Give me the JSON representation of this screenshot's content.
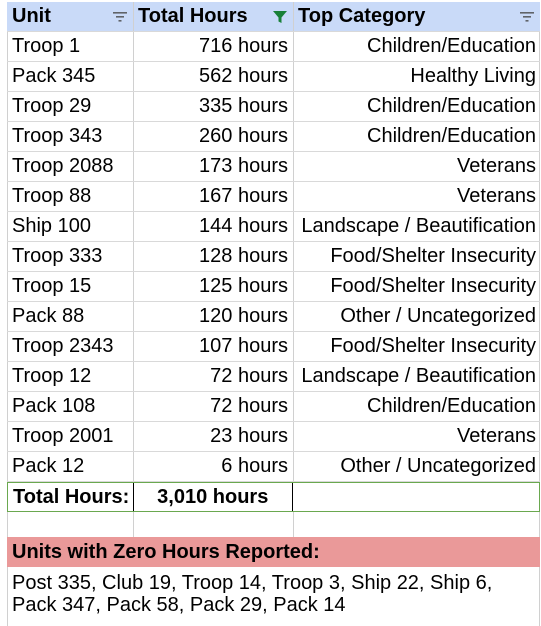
{
  "table": {
    "headers": {
      "unit": "Unit",
      "total_hours": "Total Hours",
      "top_category": "Top Category"
    },
    "rows": [
      {
        "unit": "Troop 1",
        "hours": "716 hours",
        "category": "Children/Education"
      },
      {
        "unit": "Pack 345",
        "hours": "562 hours",
        "category": "Healthy Living"
      },
      {
        "unit": "Troop 29",
        "hours": "335 hours",
        "category": "Children/Education"
      },
      {
        "unit": "Troop 343",
        "hours": "260 hours",
        "category": "Children/Education"
      },
      {
        "unit": "Troop 2088",
        "hours": "173 hours",
        "category": "Veterans"
      },
      {
        "unit": "Troop 88",
        "hours": "167 hours",
        "category": "Veterans"
      },
      {
        "unit": "Ship 100",
        "hours": "144 hours",
        "category": "Landscape / Beautification"
      },
      {
        "unit": "Troop 333",
        "hours": "128 hours",
        "category": "Food/Shelter Insecurity"
      },
      {
        "unit": "Troop 15",
        "hours": "125 hours",
        "category": "Food/Shelter Insecurity"
      },
      {
        "unit": "Pack 88",
        "hours": "120 hours",
        "category": "Other / Uncategorized"
      },
      {
        "unit": "Troop 2343",
        "hours": "107 hours",
        "category": "Food/Shelter Insecurity"
      },
      {
        "unit": "Troop 12",
        "hours": "72 hours",
        "category": "Landscape / Beautification"
      },
      {
        "unit": "Pack 108",
        "hours": "72 hours",
        "category": "Children/Education"
      },
      {
        "unit": "Troop 2001",
        "hours": "23 hours",
        "category": "Veterans"
      },
      {
        "unit": "Pack 12",
        "hours": "6 hours",
        "category": "Other / Uncategorized"
      }
    ],
    "total": {
      "label": "Total Hours:",
      "value": "3,010 hours"
    }
  },
  "zero_hours": {
    "title": "Units with Zero Hours Reported:",
    "list_line1": "Post 335, Club 19, Troop 14, Troop 3, Ship 22, Ship 6,",
    "list_line2": "Pack 347, Pack 58, Pack 29, Pack 14"
  },
  "icons": {
    "filter_inactive": "filter-lines-icon",
    "filter_active": "funnel-filter-icon"
  },
  "colors": {
    "header_bg": "#c9daf8",
    "zero_header_bg": "#ea9999",
    "total_border": "#6aa84f",
    "filter_active": "#188038",
    "filter_inactive": "#5f6368"
  }
}
